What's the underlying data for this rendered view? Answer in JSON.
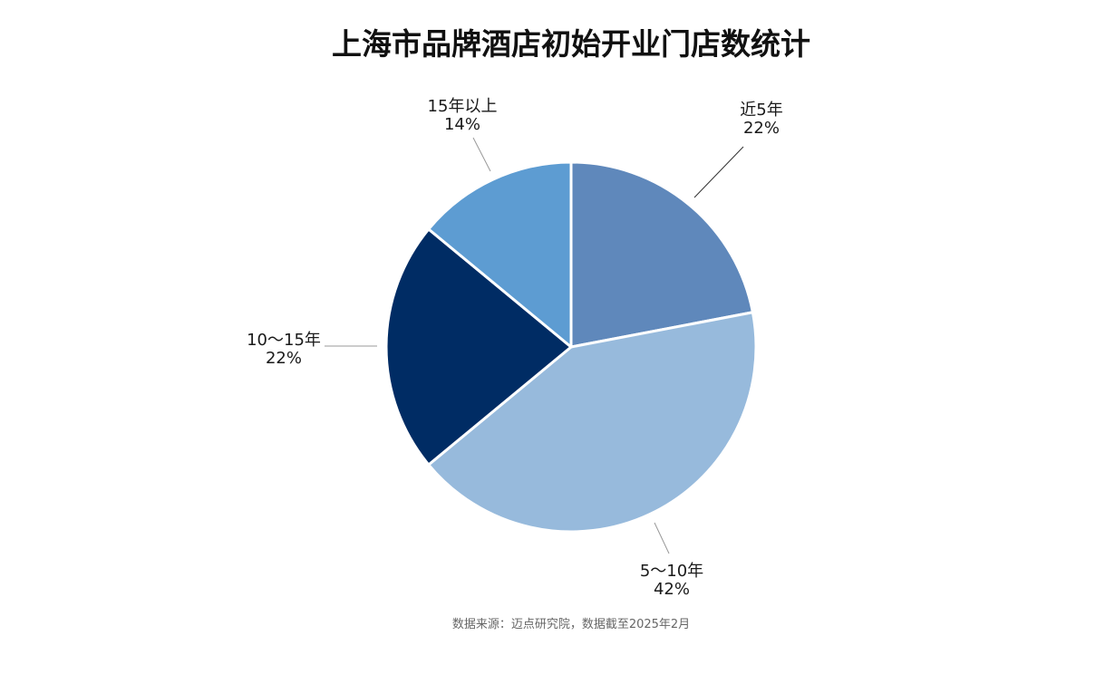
{
  "chart_data": {
    "type": "pie",
    "title": "上海市品牌酒店初始开业门店数统计",
    "categories": [
      "近5年",
      "5～10年",
      "10～15年",
      "15年以上"
    ],
    "values": [
      22,
      42,
      22,
      14
    ],
    "value_labels": [
      "22%",
      "42%",
      "22%",
      "14%"
    ],
    "colors": [
      "#5f88bb",
      "#97badc",
      "#002c64",
      "#5d9cd2"
    ],
    "start_angle_deg": 0,
    "direction": "clockwise",
    "source": "数据来源：迈点研究院，数据截至2025年2月"
  }
}
